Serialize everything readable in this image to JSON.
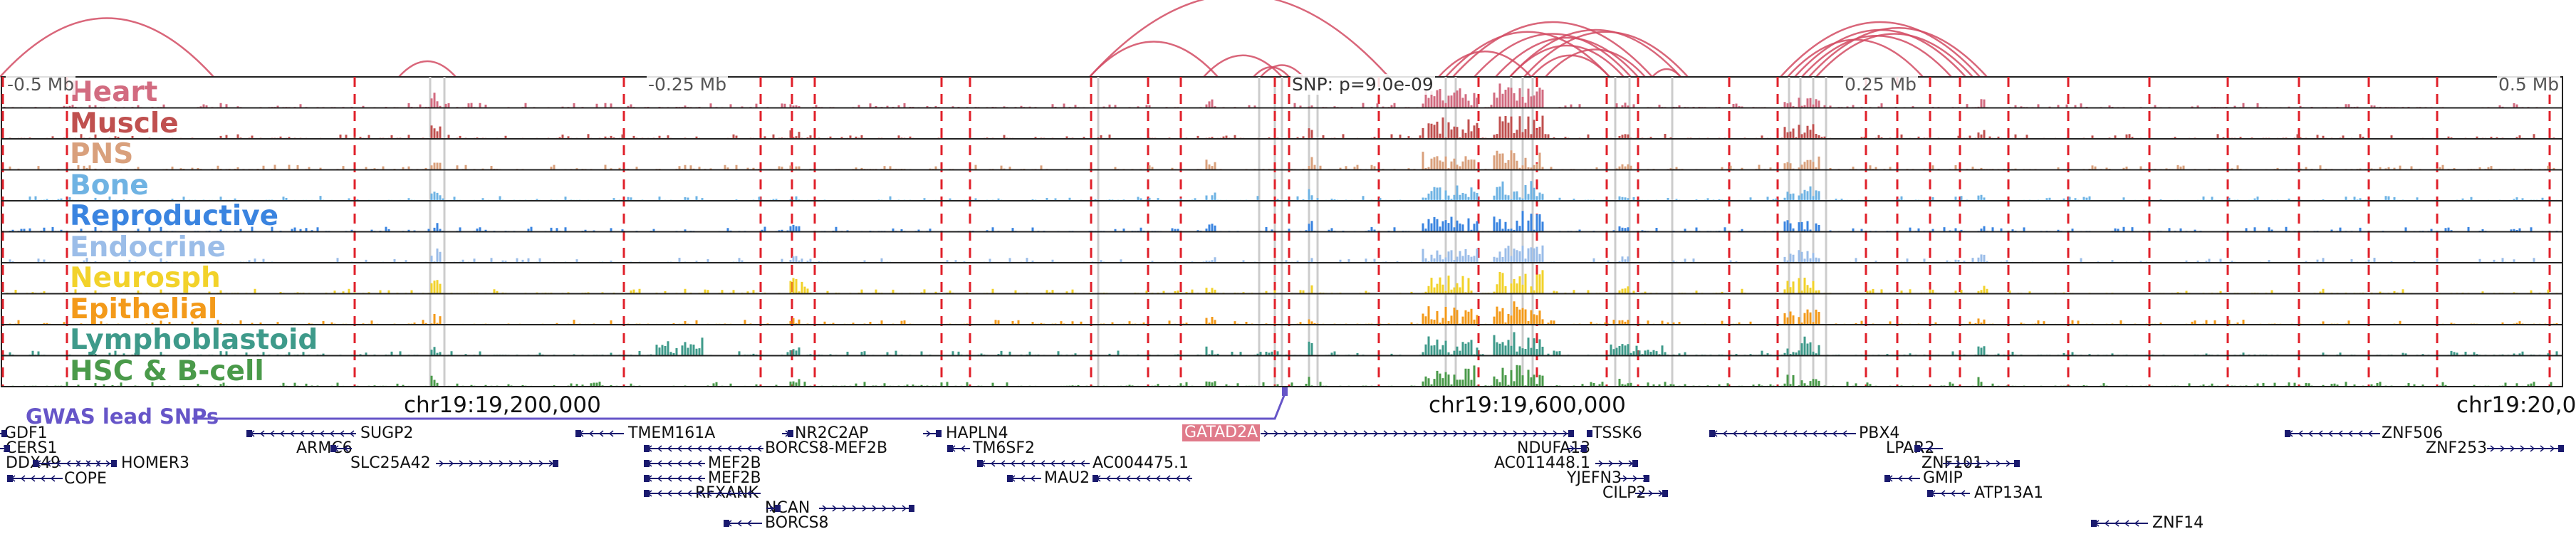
{
  "region": {
    "locus": "chr19",
    "snp_label": "SNP: p=9.0e-09",
    "scale_labels": [
      "-0.5 Mb",
      "-0.25 Mb",
      "0.25 Mb",
      "0.5 Mb"
    ],
    "coordinate_labels": [
      "chr19:19,200,000",
      "chr19:19,600,000",
      "chr19:20,0"
    ],
    "gwas_label": "GWAS lead SNPs"
  },
  "colors": {
    "arc": "#d24b63",
    "peak_marker": "#e0202a",
    "gene": "#1a1a6e",
    "gwas": "#6655c8",
    "highlight_gene": "#e07a8a"
  },
  "tracks": [
    {
      "name": "Heart",
      "color": "#d26b80"
    },
    {
      "name": "Muscle",
      "color": "#c0504f"
    },
    {
      "name": "PNS",
      "color": "#d9a07c"
    },
    {
      "name": "Bone",
      "color": "#6fb3e3"
    },
    {
      "name": "Reproductive",
      "color": "#3a84e0"
    },
    {
      "name": "Endocrine",
      "color": "#9bbde8"
    },
    {
      "name": "Neurosph",
      "color": "#f2d22a"
    },
    {
      "name": "Epithelial",
      "color": "#f39a1a"
    },
    {
      "name": "Lymphoblastoid",
      "color": "#3e9a8a"
    },
    {
      "name": "HSC & B-cell",
      "color": "#4a9a4a"
    }
  ],
  "genes": [
    {
      "name": "GDF1"
    },
    {
      "name": "CERS1"
    },
    {
      "name": "DDX49"
    },
    {
      "name": "COPE"
    },
    {
      "name": "HOMER3"
    },
    {
      "name": "SUGP2"
    },
    {
      "name": "ARMC6"
    },
    {
      "name": "SLC25A42"
    },
    {
      "name": "TMEM161A"
    },
    {
      "name": "MEF2B"
    },
    {
      "name": "MEF2B"
    },
    {
      "name": "RFXANK"
    },
    {
      "name": "NR2C2AP"
    },
    {
      "name": "BORCS8-MEF2B"
    },
    {
      "name": "NCAN"
    },
    {
      "name": "BORCS8"
    },
    {
      "name": "HAPLN4"
    },
    {
      "name": "TM6SF2"
    },
    {
      "name": "AC004475.1"
    },
    {
      "name": "MAU2"
    },
    {
      "name": "GATAD2A"
    },
    {
      "name": "TSSK6"
    },
    {
      "name": "NDUFA13"
    },
    {
      "name": "AC011448.1"
    },
    {
      "name": "YJEFN3"
    },
    {
      "name": "CILP2"
    },
    {
      "name": "PBX4"
    },
    {
      "name": "LPAR2"
    },
    {
      "name": "ZNF101"
    },
    {
      "name": "GMIP"
    },
    {
      "name": "ATP13A1"
    },
    {
      "name": "ZNF14"
    },
    {
      "name": "ZNF506"
    },
    {
      "name": "ZNF253"
    }
  ]
}
